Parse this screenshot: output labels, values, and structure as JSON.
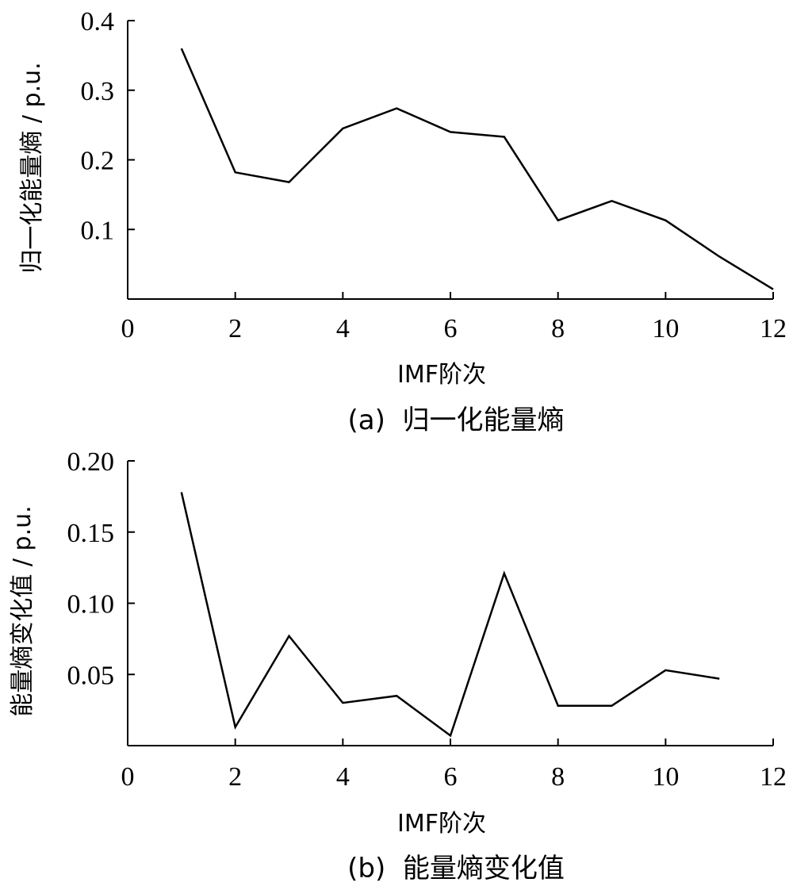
{
  "chart_data": [
    {
      "type": "line",
      "caption": "(a)  归一化能量熵",
      "xlabel": "IMF阶次",
      "ylabel": "归一化能量熵 / p.u.",
      "xlim": [
        0,
        12
      ],
      "ylim": [
        0,
        0.4
      ],
      "x_ticks": [
        0,
        2,
        4,
        6,
        8,
        10,
        12
      ],
      "y_ticks": [
        0.1,
        0.2,
        0.3,
        0.4
      ],
      "x_tick_labels": [
        "0",
        "2",
        "4",
        "6",
        "8",
        "10",
        "12"
      ],
      "y_tick_labels": [
        "0.1",
        "0.2",
        "0.3",
        "0.4"
      ],
      "grid": false,
      "series": [
        {
          "x": [
            1,
            2,
            3,
            4,
            5,
            6,
            7,
            8,
            9,
            10,
            11,
            12
          ],
          "values": [
            0.36,
            0.182,
            0.168,
            0.245,
            0.274,
            0.24,
            0.233,
            0.113,
            0.141,
            0.113,
            0.061,
            0.014
          ]
        }
      ]
    },
    {
      "type": "line",
      "caption": "(b)  能量熵变化值",
      "xlabel": "IMF阶次",
      "ylabel": "能量熵变化值 / p.u.",
      "xlim": [
        0,
        12
      ],
      "ylim": [
        0,
        0.2
      ],
      "x_ticks": [
        0,
        2,
        4,
        6,
        8,
        10,
        12
      ],
      "y_ticks": [
        0.05,
        0.1,
        0.15,
        0.2
      ],
      "x_tick_labels": [
        "0",
        "2",
        "4",
        "6",
        "8",
        "10",
        "12"
      ],
      "y_tick_labels": [
        "0.05",
        "0.10",
        "0.15",
        "0.20"
      ],
      "grid": false,
      "series": [
        {
          "x": [
            1,
            2,
            3,
            4,
            5,
            6,
            7,
            8,
            9,
            10,
            11
          ],
          "values": [
            0.178,
            0.013,
            0.077,
            0.03,
            0.035,
            0.007,
            0.121,
            0.028,
            0.028,
            0.053,
            0.047
          ]
        }
      ]
    }
  ]
}
